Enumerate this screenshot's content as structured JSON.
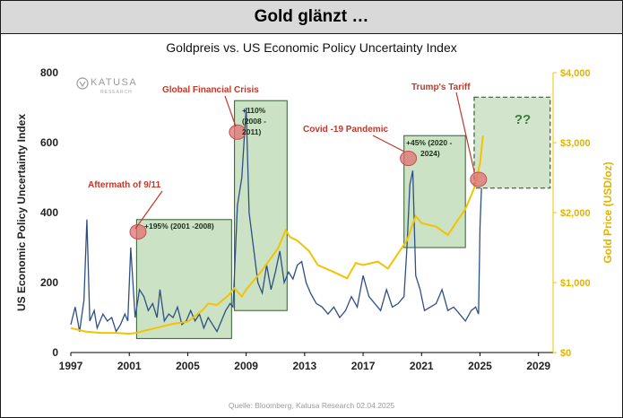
{
  "header": {
    "title": "Gold glänzt …"
  },
  "source_note": "Quelle: Bloomberg, Katusa Research 02.04.2025",
  "logo": {
    "name": "KATUSA",
    "sub": "RESEARCH"
  },
  "colors": {
    "epu_line": "#2e4f86",
    "gold_line": "#f2c300",
    "annotation_red": "#c0392b",
    "box_fill": "#8fbf7f",
    "box_stroke": "#2f5f2f"
  },
  "chart_data": {
    "type": "line",
    "title": "Goldpreis vs. US Economic Policy Uncertainty Index",
    "xlabel": "",
    "ylabel": "US Economic Policy Uncertainty Index",
    "y2label": "Gold Price (USD/oz)",
    "xlim": [
      1997,
      2030
    ],
    "ylim": [
      0,
      800
    ],
    "y2lim": [
      0,
      4000
    ],
    "xticks": [
      "1997",
      "2001",
      "2005",
      "2009",
      "2013",
      "2017",
      "2021",
      "2025",
      "2029"
    ],
    "yticks": [
      "0",
      "200",
      "400",
      "600",
      "800"
    ],
    "y2ticks": [
      "$0",
      "$1,000",
      "$2,000",
      "$3,000",
      "$4,000"
    ],
    "grid": false,
    "series": [
      {
        "axis": "right",
        "x": [
          1997.0,
          1998.0,
          1999.0,
          2000.0,
          2001.0,
          2001.5,
          2002.0,
          2003.0,
          2004.0,
          2005.0,
          2006.0,
          2006.4,
          2007.0,
          2007.8,
          2008.2,
          2008.7,
          2009.0,
          2010.0,
          2010.8,
          2011.2,
          2011.7,
          2012.0,
          2012.5,
          2013.3,
          2013.9,
          2015.0,
          2015.9,
          2016.5,
          2017.0,
          2018.0,
          2018.7,
          2019.5,
          2020.0,
          2020.6,
          2021.0,
          2022.0,
          2022.8,
          2023.5,
          2024.0,
          2024.6,
          2025.0,
          2025.2
        ],
        "values": [
          350,
          300,
          280,
          280,
          270,
          280,
          310,
          360,
          410,
          440,
          600,
          700,
          680,
          820,
          920,
          800,
          900,
          1150,
          1380,
          1500,
          1750,
          1650,
          1600,
          1450,
          1250,
          1150,
          1060,
          1280,
          1250,
          1300,
          1200,
          1450,
          1600,
          1950,
          1850,
          1800,
          1680,
          1900,
          2050,
          2350,
          2700,
          3100
        ]
      },
      {
        "axis": "left",
        "x": [
          1997.0,
          1997.3,
          1997.6,
          1997.9,
          1998.1,
          1998.3,
          1998.6,
          1998.8,
          1999.2,
          1999.5,
          1999.8,
          2000.1,
          2000.4,
          2000.7,
          2000.9,
          2001.1,
          2001.4,
          2001.7,
          2002.0,
          2002.3,
          2002.6,
          2002.9,
          2003.1,
          2003.4,
          2003.7,
          2004.0,
          2004.3,
          2004.6,
          2004.9,
          2005.2,
          2005.5,
          2005.8,
          2006.1,
          2006.4,
          2006.7,
          2007.0,
          2007.3,
          2007.6,
          2007.9,
          2008.1,
          2008.4,
          2008.7,
          2009.0,
          2009.2,
          2009.5,
          2009.8,
          2010.1,
          2010.4,
          2010.7,
          2011.0,
          2011.3,
          2011.6,
          2011.9,
          2012.2,
          2012.5,
          2012.8,
          2013.1,
          2013.4,
          2013.8,
          2014.2,
          2014.6,
          2015.0,
          2015.4,
          2015.8,
          2016.2,
          2016.6,
          2017.0,
          2017.4,
          2017.8,
          2018.2,
          2018.6,
          2019.0,
          2019.4,
          2019.8,
          2020.0,
          2020.2,
          2020.4,
          2020.6,
          2020.9,
          2021.2,
          2021.6,
          2022.0,
          2022.4,
          2022.8,
          2023.2,
          2023.6,
          2024.0,
          2024.4,
          2024.7,
          2024.9,
          2025.0,
          2025.1
        ],
        "values": [
          80,
          130,
          60,
          150,
          380,
          90,
          120,
          70,
          110,
          90,
          100,
          60,
          80,
          110,
          90,
          300,
          100,
          180,
          160,
          120,
          140,
          100,
          180,
          90,
          110,
          100,
          130,
          80,
          90,
          120,
          90,
          110,
          70,
          100,
          80,
          60,
          90,
          120,
          140,
          130,
          420,
          500,
          700,
          400,
          300,
          200,
          170,
          250,
          180,
          230,
          290,
          200,
          230,
          210,
          250,
          260,
          200,
          170,
          140,
          130,
          110,
          130,
          100,
          120,
          160,
          130,
          220,
          160,
          140,
          120,
          180,
          130,
          140,
          160,
          300,
          480,
          520,
          220,
          180,
          120,
          130,
          140,
          180,
          120,
          130,
          110,
          90,
          120,
          130,
          110,
          360,
          470
        ]
      }
    ],
    "annotations": [
      {
        "label": "Aftermath of 9/11",
        "note": "+195% (2001 -2008)"
      },
      {
        "label": "Global Financial Crisis",
        "note": "+110% (2008 - 2011)"
      },
      {
        "label": "Covid -19 Pandemic",
        "note": "+45% (2020 - 2024)"
      },
      {
        "label": "Trump's Tariff",
        "note": "??"
      }
    ]
  }
}
